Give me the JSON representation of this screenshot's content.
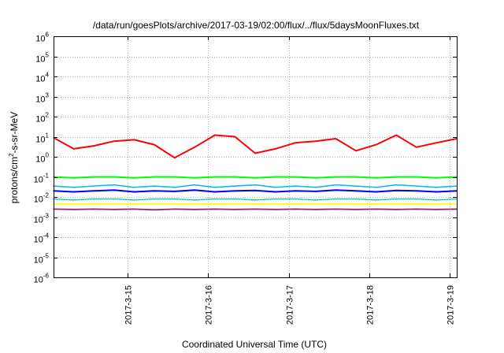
{
  "chart_data": {
    "type": "line",
    "title": "/data/run/goesPlots/archive/2017-03-19/02:00/flux/../flux/5daysMoonFluxes.txt",
    "xlabel": "Coordinated Universal Time (UTC)",
    "ylabel_parts": [
      "protons/cm",
      "2",
      "-s-sr-MeV"
    ],
    "y_scale": "log",
    "ylim": [
      1e-06,
      1000000.0
    ],
    "y_ticks": [
      {
        "base": "10",
        "exp": "-6",
        "value": 1e-06
      },
      {
        "base": "10",
        "exp": "-5",
        "value": 1e-05
      },
      {
        "base": "10",
        "exp": "-4",
        "value": 0.0001
      },
      {
        "base": "10",
        "exp": "-3",
        "value": 0.001
      },
      {
        "base": "10",
        "exp": "-2",
        "value": 0.01
      },
      {
        "base": "10",
        "exp": "-1",
        "value": 0.1
      },
      {
        "base": "10",
        "exp": "0",
        "value": 1
      },
      {
        "base": "10",
        "exp": "1",
        "value": 10
      },
      {
        "base": "10",
        "exp": "2",
        "value": 100
      },
      {
        "base": "10",
        "exp": "3",
        "value": 1000
      },
      {
        "base": "10",
        "exp": "4",
        "value": 10000
      },
      {
        "base": "10",
        "exp": "5",
        "value": 100000
      },
      {
        "base": "10",
        "exp": "6",
        "value": 1000000
      }
    ],
    "xlim": [
      "2017-03-14 02:00",
      "2017-03-19 02:00"
    ],
    "x_ticks": [
      {
        "label": "2017-3-15",
        "value": "2017-03-15 00:00"
      },
      {
        "label": "2017-3-16",
        "value": "2017-03-16 00:00"
      },
      {
        "label": "2017-3-17",
        "value": "2017-03-17 00:00"
      },
      {
        "label": "2017-3-18",
        "value": "2017-03-18 00:00"
      },
      {
        "label": "2017-3-19",
        "value": "2017-03-19 00:00"
      }
    ],
    "grid": true,
    "x": [
      "2017-03-14 02:00",
      "2017-03-14 08:00",
      "2017-03-14 14:00",
      "2017-03-14 20:00",
      "2017-03-15 02:00",
      "2017-03-15 08:00",
      "2017-03-15 14:00",
      "2017-03-15 20:00",
      "2017-03-16 02:00",
      "2017-03-16 08:00",
      "2017-03-16 14:00",
      "2017-03-16 20:00",
      "2017-03-17 02:00",
      "2017-03-17 08:00",
      "2017-03-17 14:00",
      "2017-03-17 20:00",
      "2017-03-18 02:00",
      "2017-03-18 08:00",
      "2017-03-18 14:00",
      "2017-03-18 20:00",
      "2017-03-19 02:00"
    ],
    "series": [
      {
        "color": "#ff0000",
        "width": 2,
        "values": [
          9,
          2.5,
          3.5,
          6,
          7,
          4,
          0.9,
          3,
          12,
          10,
          1.5,
          2.5,
          5,
          6,
          8,
          2,
          4,
          12,
          3,
          5,
          8
        ]
      },
      {
        "color": "#00ff00",
        "width": 2,
        "values": [
          0.1,
          0.09,
          0.1,
          0.1,
          0.09,
          0.1,
          0.1,
          0.09,
          0.1,
          0.1,
          0.09,
          0.1,
          0.1,
          0.09,
          0.1,
          0.1,
          0.09,
          0.1,
          0.1,
          0.09,
          0.1
        ]
      },
      {
        "color": "#00b4ff",
        "width": 1.5,
        "values": [
          0.035,
          0.03,
          0.035,
          0.04,
          0.03,
          0.035,
          0.03,
          0.04,
          0.03,
          0.035,
          0.04,
          0.03,
          0.035,
          0.03,
          0.04,
          0.035,
          0.03,
          0.04,
          0.035,
          0.03,
          0.035
        ]
      },
      {
        "color": "#0000ff",
        "width": 2,
        "values": [
          0.02,
          0.018,
          0.02,
          0.022,
          0.018,
          0.02,
          0.019,
          0.022,
          0.018,
          0.02,
          0.021,
          0.018,
          0.02,
          0.019,
          0.022,
          0.02,
          0.018,
          0.021,
          0.02,
          0.018,
          0.02
        ]
      },
      {
        "color": "#00c8a0",
        "width": 1.2,
        "values": [
          0.008,
          0.007,
          0.008,
          0.008,
          0.007,
          0.008,
          0.008,
          0.007,
          0.008,
          0.008,
          0.007,
          0.008,
          0.008,
          0.007,
          0.008,
          0.008,
          0.007,
          0.008,
          0.008,
          0.007,
          0.008
        ]
      },
      {
        "color": "#ffff00",
        "width": 1.8,
        "values": [
          0.0045,
          0.0045,
          0.0045,
          0.0045,
          0.0045,
          0.0045,
          0.0045,
          0.0045,
          0.0045,
          0.0045,
          0.0045,
          0.0045,
          0.0045,
          0.0045,
          0.0045,
          0.0045,
          0.0045,
          0.0045,
          0.0045,
          0.0045,
          0.0045
        ]
      },
      {
        "color": "#8b2a7a",
        "width": 1.8,
        "values": [
          0.0025,
          0.0024,
          0.0025,
          0.0024,
          0.0025,
          0.0023,
          0.0025,
          0.0024,
          0.0025,
          0.0024,
          0.0025,
          0.0024,
          0.0025,
          0.0024,
          0.0025,
          0.0024,
          0.0025,
          0.0024,
          0.0025,
          0.0024,
          0.0025
        ]
      }
    ]
  }
}
